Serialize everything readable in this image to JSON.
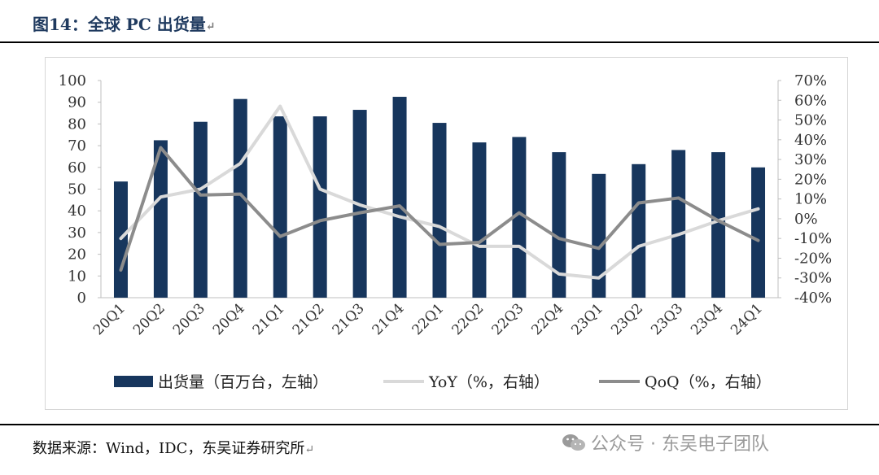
{
  "header": {
    "title": "图14：全球 PC 出货量",
    "return_mark": "↵"
  },
  "source": {
    "text": "数据来源：Wind，IDC，东吴证券研究所",
    "return_mark": "↵"
  },
  "watermark": {
    "icon": "wechat-icon",
    "text": "公众号 · 东吴电子团队"
  },
  "colors": {
    "bar": "#17365d",
    "yoy": "#d9d9d9",
    "qoq": "#8c8c8c",
    "rule": "#000000"
  },
  "chart_data": {
    "type": "bar",
    "title": "",
    "categories": [
      "20Q1",
      "20Q2",
      "20Q3",
      "20Q4",
      "21Q1",
      "21Q2",
      "21Q3",
      "21Q4",
      "22Q1",
      "22Q2",
      "22Q3",
      "22Q4",
      "23Q1",
      "23Q2",
      "23Q3",
      "23Q4",
      "24Q1"
    ],
    "series": [
      {
        "name": "出货量（百万台，左轴）",
        "type": "bar",
        "axis": "left",
        "values": [
          53.5,
          72.5,
          81,
          91.5,
          83.5,
          83.5,
          86.5,
          92.5,
          80.5,
          71.5,
          74,
          67,
          57,
          61.5,
          68,
          67,
          60
        ]
      },
      {
        "name": "YoY（%，右轴）",
        "type": "line",
        "axis": "right",
        "values": [
          -10,
          11,
          15,
          28,
          57,
          15,
          7,
          1,
          -4,
          -14,
          -14,
          -28,
          -30,
          -14,
          -8,
          -1,
          5
        ]
      },
      {
        "name": "QoQ（%，右轴）",
        "type": "line",
        "axis": "right",
        "values": [
          -26,
          36,
          12,
          12.5,
          -9,
          -1,
          3,
          6.5,
          -13,
          -12,
          3,
          -10,
          -15,
          8,
          10.5,
          -1,
          -11
        ]
      }
    ],
    "left_axis": {
      "min": 0,
      "max": 100,
      "step": 10,
      "ticks": [
        "0",
        "10",
        "20",
        "30",
        "40",
        "50",
        "60",
        "70",
        "80",
        "90",
        "100"
      ]
    },
    "right_axis": {
      "min": -40,
      "max": 70,
      "step": 10,
      "ticks": [
        "-40%",
        "-30%",
        "-20%",
        "-10%",
        "0%",
        "10%",
        "20%",
        "30%",
        "40%",
        "50%",
        "60%",
        "70%"
      ]
    },
    "legend": [
      "出货量（百万台，左轴）",
      "YoY（%，右轴）",
      "QoQ（%，右轴）"
    ],
    "legend_position": "bottom",
    "grid": false
  }
}
